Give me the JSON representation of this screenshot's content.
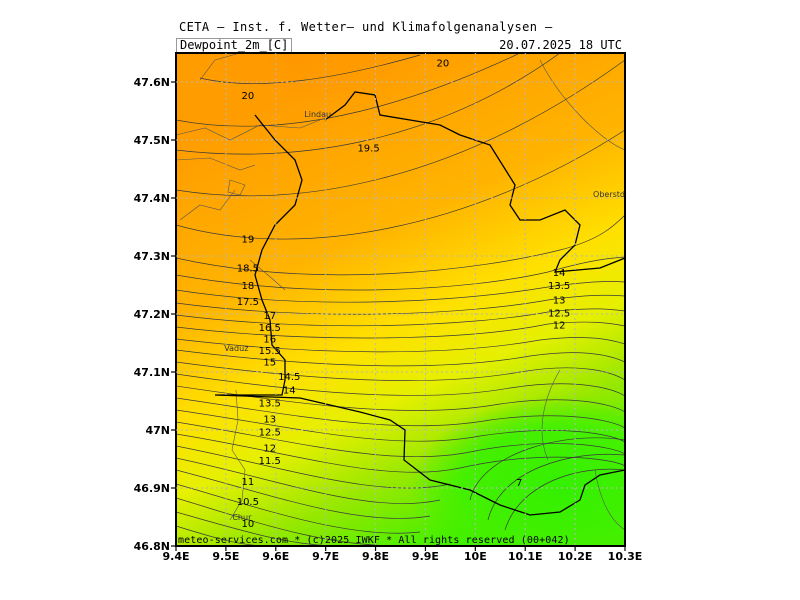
{
  "header": {
    "source_title": "CETA — Inst. f. Wetter— und Klimafolgenanalysen —",
    "parameter": "Dewpoint_2m_[C]",
    "valid_time": "20.07.2025  18 UTC"
  },
  "footer": {
    "credit": "meteo-services.com * (c)2025 IWKF * All rights reserved (00+042)"
  },
  "map": {
    "lon_range": [
      9.4,
      10.3
    ],
    "lat_range": [
      46.8,
      47.65
    ],
    "lon_ticks": [
      "9.4E",
      "9.5E",
      "9.6E",
      "9.7E",
      "9.8E",
      "9.9E",
      "10E",
      "10.1E",
      "10.2E",
      "10.3E"
    ],
    "lat_ticks": [
      "46.8N",
      "46.9N",
      "47N",
      "47.1N",
      "47.2N",
      "47.3N",
      "47.4N",
      "47.5N",
      "47.6N"
    ],
    "cities": [
      {
        "name": "Lindau",
        "lon": 9.684,
        "lat": 47.545
      },
      {
        "name": "Oberstdorf",
        "lon": 10.279,
        "lat": 47.407
      },
      {
        "name": "Vaduz",
        "lon": 9.521,
        "lat": 47.141
      },
      {
        "name": "Chur",
        "lon": 9.532,
        "lat": 46.85
      }
    ],
    "contour_labels": [
      {
        "value": "20",
        "lon": 9.544,
        "lat": 47.578
      },
      {
        "value": "20",
        "lon": 9.935,
        "lat": 47.634
      },
      {
        "value": "19.5",
        "lon": 9.786,
        "lat": 47.487
      },
      {
        "value": "19",
        "lon": 9.544,
        "lat": 47.33
      },
      {
        "value": "18.5",
        "lon": 9.544,
        "lat": 47.28
      },
      {
        "value": "18",
        "lon": 9.544,
        "lat": 47.25
      },
      {
        "value": "17.5",
        "lon": 9.544,
        "lat": 47.222
      },
      {
        "value": "17",
        "lon": 9.588,
        "lat": 47.198
      },
      {
        "value": "16.5",
        "lon": 9.588,
        "lat": 47.178
      },
      {
        "value": "16",
        "lon": 9.588,
        "lat": 47.158
      },
      {
        "value": "15.5",
        "lon": 9.588,
        "lat": 47.138
      },
      {
        "value": "15",
        "lon": 9.588,
        "lat": 47.118
      },
      {
        "value": "14.5",
        "lon": 9.627,
        "lat": 47.093
      },
      {
        "value": "14",
        "lon": 9.627,
        "lat": 47.07
      },
      {
        "value": "13.5",
        "lon": 9.588,
        "lat": 47.047
      },
      {
        "value": "13",
        "lon": 9.588,
        "lat": 47.02
      },
      {
        "value": "12.5",
        "lon": 9.588,
        "lat": 46.997
      },
      {
        "value": "12",
        "lon": 9.588,
        "lat": 46.97
      },
      {
        "value": "11.5",
        "lon": 9.588,
        "lat": 46.948
      },
      {
        "value": "11",
        "lon": 9.544,
        "lat": 46.912
      },
      {
        "value": "10.5",
        "lon": 9.544,
        "lat": 46.878
      },
      {
        "value": "10",
        "lon": 9.544,
        "lat": 46.84
      },
      {
        "value": "14",
        "lon": 10.168,
        "lat": 47.272
      },
      {
        "value": "13.5",
        "lon": 10.168,
        "lat": 47.25
      },
      {
        "value": "13",
        "lon": 10.168,
        "lat": 47.225
      },
      {
        "value": "12.5",
        "lon": 10.168,
        "lat": 47.203
      },
      {
        "value": "12",
        "lon": 10.168,
        "lat": 47.182
      },
      {
        "value": "7",
        "lon": 10.088,
        "lat": 46.91
      }
    ],
    "colors": {
      "dewpoint_20": "#ff9d00",
      "dewpoint_18": "#ffb300",
      "dewpoint_15": "#ffe000",
      "dewpoint_13": "#e6f000",
      "dewpoint_11": "#9be800",
      "dewpoint_7": "#33f000",
      "border": "#000000",
      "contour": "#3a3a3a"
    }
  }
}
